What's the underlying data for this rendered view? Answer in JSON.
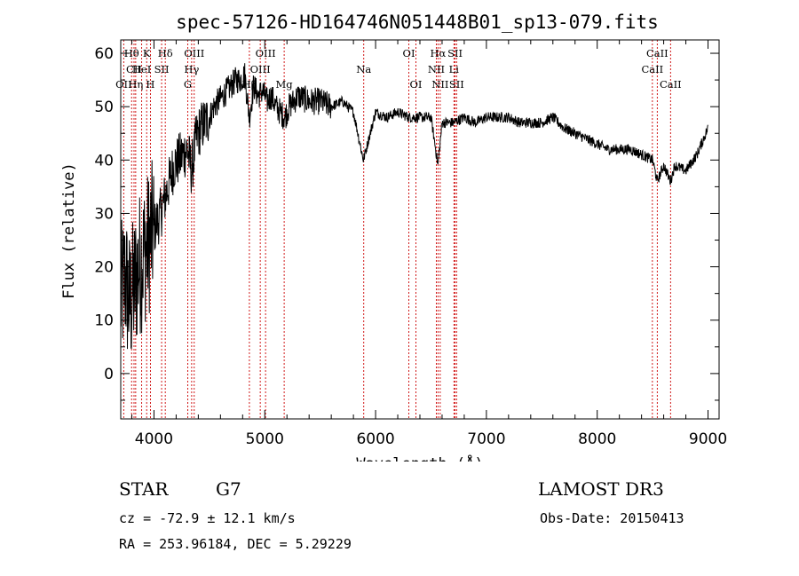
{
  "chart_data": {
    "type": "line",
    "title": "spec-57126-HD164746N051448B01_sp13-079.fits",
    "xlabel": "Wavelength (Å)",
    "ylabel": "Flux (relative)",
    "xlim": [
      3700,
      9100
    ],
    "ylim": [
      -8.5,
      62.5
    ],
    "xticks": [
      4000,
      5000,
      6000,
      7000,
      8000,
      9000
    ],
    "yticks": [
      0,
      10,
      20,
      30,
      40,
      50,
      60
    ],
    "series": [
      {
        "name": "flux",
        "x": [
          3700,
          3740,
          3780,
          3820,
          3860,
          3900,
          3940,
          3980,
          4020,
          4060,
          4100,
          4140,
          4180,
          4220,
          4260,
          4300,
          4340,
          4380,
          4420,
          4460,
          4500,
          4540,
          4580,
          4620,
          4660,
          4700,
          4740,
          4780,
          4820,
          4860,
          4900,
          4940,
          4980,
          5020,
          5060,
          5100,
          5140,
          5180,
          5220,
          5260,
          5300,
          5400,
          5500,
          5600,
          5700,
          5800,
          5890,
          6000,
          6100,
          6200,
          6300,
          6400,
          6500,
          6563,
          6600,
          6700,
          6800,
          6900,
          7000,
          7100,
          7200,
          7300,
          7400,
          7500,
          7600,
          7700,
          7800,
          7900,
          8000,
          8100,
          8200,
          8300,
          8400,
          8500,
          8542,
          8600,
          8662,
          8700,
          8800,
          8900,
          9000
        ],
        "y": [
          14,
          18,
          13,
          16,
          20,
          22,
          24,
          26,
          28,
          30,
          33,
          36,
          39,
          40,
          41,
          42,
          38,
          44,
          46,
          47,
          48,
          50,
          51,
          52,
          53,
          54,
          55,
          55,
          56,
          48,
          54,
          52,
          53,
          51,
          52,
          50,
          49,
          48,
          50,
          51,
          52,
          51,
          51,
          50,
          51,
          49,
          40,
          49,
          48,
          49,
          48,
          48,
          48,
          39,
          47,
          47,
          48,
          47,
          48,
          48,
          48,
          47,
          47,
          47,
          48,
          46,
          45,
          44,
          43,
          42,
          42,
          42,
          41,
          40,
          36,
          39,
          36,
          39,
          38,
          41,
          46
        ]
      }
    ],
    "lines": [
      {
        "name": "Hθ",
        "x": 3798,
        "row": 0
      },
      {
        "name": "CII",
        "x": 3820,
        "row": 1
      },
      {
        "name": "OII",
        "x": 3727,
        "row": 2
      },
      {
        "name": "HeI",
        "x": 3889,
        "row": 1
      },
      {
        "name": "Hη",
        "x": 3835,
        "row": 2
      },
      {
        "name": "K",
        "x": 3934,
        "row": 0
      },
      {
        "name": "H",
        "x": 3968,
        "row": 2
      },
      {
        "name": "SII",
        "x": 4069,
        "row": 1
      },
      {
        "name": "Hδ",
        "x": 4102,
        "row": 0
      },
      {
        "name": "OIII",
        "x": 4363,
        "row": 0
      },
      {
        "name": "Hγ",
        "x": 4340,
        "row": 1
      },
      {
        "name": "G",
        "x": 4305,
        "row": 2
      },
      {
        "name": "Hβ",
        "x": 4861,
        "row": 2
      },
      {
        "name": "OIII",
        "x": 4959,
        "row": 1
      },
      {
        "name": "OIII",
        "x": 5007,
        "row": 0
      },
      {
        "name": "Mg",
        "x": 5175,
        "row": 2
      },
      {
        "name": "Na",
        "x": 5893,
        "row": 1
      },
      {
        "name": "OI",
        "x": 6300,
        "row": 0
      },
      {
        "name": "OI",
        "x": 6364,
        "row": 2
      },
      {
        "name": "Hα",
        "x": 6563,
        "row": 0
      },
      {
        "name": "NII",
        "x": 6548,
        "row": 1
      },
      {
        "name": "NII",
        "x": 6583,
        "row": 2
      },
      {
        "name": "SII",
        "x": 6717,
        "row": 0
      },
      {
        "name": "Li",
        "x": 6707,
        "row": 1
      },
      {
        "name": "SII",
        "x": 6731,
        "row": 2
      },
      {
        "name": "CaII",
        "x": 8498,
        "row": 1
      },
      {
        "name": "CaII",
        "x": 8542,
        "row": 0
      },
      {
        "name": "CaII",
        "x": 8662,
        "row": 2
      }
    ]
  },
  "info": {
    "object_type": "STAR",
    "subclass": "G7",
    "survey": "LAMOST DR3",
    "cz": "cz = -72.9 ± 12.1 km/s",
    "obs_date": "Obs-Date: 20150413",
    "coords": "RA = 253.96184, DEC =   5.29229"
  }
}
